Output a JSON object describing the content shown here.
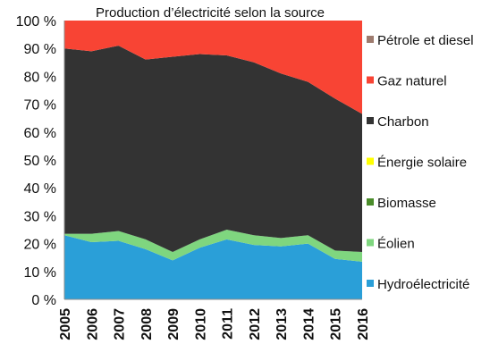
{
  "chart_data": {
    "type": "area",
    "stacked": true,
    "title": "Production d’électricité selon la source",
    "xlabel": "",
    "ylabel": "",
    "ylim": [
      0,
      100
    ],
    "yticks": [
      "0 %",
      "10 %",
      "20 %",
      "30 %",
      "40 %",
      "50 %",
      "60 %",
      "70 %",
      "80 %",
      "90 %",
      "100 %"
    ],
    "x": [
      "2005",
      "2006",
      "2007",
      "2008",
      "2009",
      "2010",
      "2011",
      "2012",
      "2013",
      "2014",
      "2015",
      "2016"
    ],
    "grid": false,
    "legend_position": "right",
    "series": [
      {
        "name": "Hydroélectricité",
        "color": "#2a9fd8",
        "values": [
          23,
          20.5,
          21,
          18,
          14,
          18.5,
          21.5,
          19.5,
          19,
          20,
          14.5,
          13.5
        ]
      },
      {
        "name": "Éolien",
        "color": "#7fd67f",
        "values": [
          0.5,
          3,
          3.5,
          3.5,
          3,
          3,
          3.5,
          3.5,
          3,
          3,
          3,
          3.5
        ]
      },
      {
        "name": "Biomasse",
        "color": "#4a8c2a",
        "values": [
          0,
          0,
          0,
          0,
          0,
          0,
          0,
          0,
          0,
          0,
          0,
          0
        ]
      },
      {
        "name": "Énergie solaire",
        "color": "#ffff00",
        "values": [
          0,
          0,
          0,
          0,
          0,
          0,
          0,
          0,
          0,
          0,
          0,
          0
        ]
      },
      {
        "name": "Charbon",
        "color": "#333333",
        "values": [
          66.5,
          65.5,
          66.5,
          64.5,
          70,
          66.5,
          62.5,
          62,
          59,
          55,
          54.5,
          49.5
        ]
      },
      {
        "name": "Gaz naturel",
        "color": "#f84434",
        "values": [
          10,
          11,
          9,
          14,
          13,
          12,
          12.5,
          15,
          19,
          22,
          28,
          33.5
        ]
      },
      {
        "name": "Pétrole et diesel",
        "color": "#9e7b6e",
        "values": [
          0,
          0,
          0,
          0,
          0,
          0,
          0,
          0,
          0,
          0,
          0,
          0
        ]
      }
    ]
  }
}
